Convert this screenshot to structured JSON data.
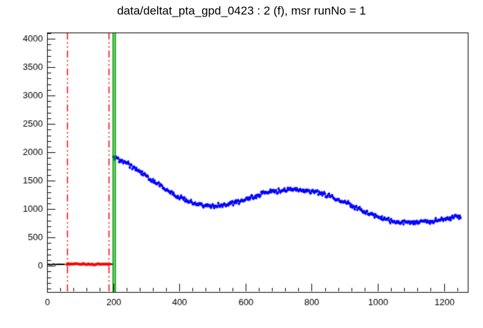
{
  "chart_data": {
    "type": "scatter",
    "title": "data/deltat_pta_gpd_0423 : 2 (f), msr runNo = 1",
    "xlabel": "",
    "ylabel": "",
    "xlim": [
      0,
      1272
    ],
    "ylim": [
      -460,
      4110
    ],
    "x_ticks": [
      0,
      200,
      400,
      600,
      800,
      1000,
      1200
    ],
    "y_ticks": [
      0,
      500,
      1000,
      1500,
      2000,
      2500,
      3000,
      3500,
      4000
    ],
    "x_minor_step": 40,
    "y_minor_step": 100,
    "grid": false,
    "legend": null,
    "background": "#ffffff",
    "frame_color": "#000000",
    "series": [
      {
        "name": "decay-histogram",
        "render": "markers",
        "marker": "square",
        "color": "#0000ff",
        "step": 2.5,
        "noise": 45,
        "errbar": 30,
        "x": [
          200,
          225,
          250,
          275,
          300,
          325,
          350,
          375,
          400,
          425,
          450,
          475,
          500,
          525,
          550,
          575,
          600,
          625,
          650,
          675,
          700,
          725,
          750,
          775,
          800,
          825,
          850,
          875,
          900,
          925,
          950,
          975,
          1000,
          1025,
          1050,
          1075,
          1100,
          1125,
          1150,
          1175,
          1200,
          1225,
          1250
        ],
        "y": [
          1900,
          1852,
          1772,
          1683,
          1585,
          1483,
          1383,
          1290,
          1209,
          1143,
          1095,
          1067,
          1057,
          1066,
          1091,
          1127,
          1172,
          1220,
          1267,
          1310,
          1320,
          1338,
          1345,
          1338,
          1318,
          1285,
          1240,
          1185,
          1121,
          1052,
          984,
          921,
          866,
          820,
          775,
          762,
          758,
          765,
          780,
          800,
          820,
          845,
          870
        ]
      },
      {
        "name": "background-window",
        "render": "line",
        "color": "#ff0000",
        "width": 4,
        "step": 4,
        "noise": 14,
        "x": [
          57,
          100,
          140,
          193
        ],
        "y": [
          32,
          34,
          30,
          33
        ]
      },
      {
        "name": "prompt-left",
        "render": "line",
        "color": "#000000",
        "width": 2,
        "step": 4,
        "noise": 6,
        "x": [
          2,
          57
        ],
        "y": [
          26,
          26
        ]
      },
      {
        "name": "prompt-right",
        "render": "line",
        "color": "#000000",
        "width": 2,
        "step": 4,
        "noise": 6,
        "x": [
          193,
          204
        ],
        "y": [
          30,
          30
        ]
      }
    ],
    "vlines": [
      {
        "name": "background-start-line",
        "x": 61,
        "color": "#ff0000",
        "style": "dashdot",
        "width": 1.5
      },
      {
        "name": "background-end-line",
        "x": 186,
        "color": "#ff0000",
        "style": "dashdot",
        "width": 1.5
      },
      {
        "name": "t0-line",
        "x": 199,
        "color": "#00a000",
        "style": "solid",
        "width": 2
      },
      {
        "name": "data-start-line",
        "x": 206,
        "color": "#00a000",
        "style": "solid",
        "width": 2
      }
    ]
  }
}
